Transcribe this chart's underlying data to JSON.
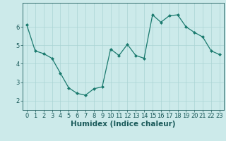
{
  "x": [
    0,
    1,
    2,
    3,
    4,
    5,
    6,
    7,
    8,
    9,
    10,
    11,
    12,
    13,
    14,
    15,
    16,
    17,
    18,
    19,
    20,
    21,
    22,
    23
  ],
  "y": [
    6.1,
    4.7,
    4.55,
    4.3,
    3.5,
    2.7,
    2.4,
    2.3,
    2.65,
    2.75,
    4.8,
    4.45,
    5.05,
    4.45,
    4.3,
    6.65,
    6.25,
    6.6,
    6.65,
    6.0,
    5.7,
    5.45,
    4.7,
    4.5
  ],
  "line_color": "#1a7a6e",
  "marker": "D",
  "marker_size": 2.0,
  "bg_color": "#cceaea",
  "grid_color": "#aad4d4",
  "xlabel": "Humidex (Indice chaleur)",
  "ylim": [
    1.5,
    7.3
  ],
  "xlim": [
    -0.5,
    23.5
  ],
  "yticks": [
    2,
    3,
    4,
    5,
    6
  ],
  "xticks": [
    0,
    1,
    2,
    3,
    4,
    5,
    6,
    7,
    8,
    9,
    10,
    11,
    12,
    13,
    14,
    15,
    16,
    17,
    18,
    19,
    20,
    21,
    22,
    23
  ],
  "axis_color": "#1a5a5a",
  "font_size_xlabel": 7.5,
  "font_size_ticks": 6.0
}
